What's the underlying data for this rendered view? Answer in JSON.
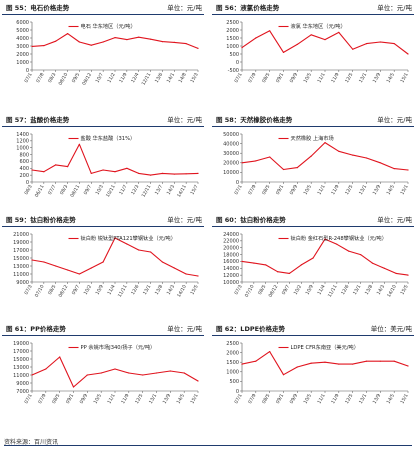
{
  "colors": {
    "line": "#e0141e",
    "axis": "#555555",
    "header_rule": "#1f3b6e"
  },
  "source": "资料来源：百川资讯",
  "panels": [
    {
      "title": "图 55：电石价格走势",
      "unit": "单位：元/吨"
    },
    {
      "title": "图 56：液氯价格走势",
      "unit": "单位：元/吨"
    },
    {
      "title": "图 57：盐酸价格走势",
      "unit": "单位：元/吨"
    },
    {
      "title": "图 58：天然橡胶价格走势",
      "unit": "单位：元/吨"
    },
    {
      "title": "图 59：钛白粉价格走势",
      "unit": "单位：元/吨"
    },
    {
      "title": "图 60：钛白粉价格走势",
      "unit": "单位：元/吨"
    },
    {
      "title": "图 61：PP价格走势",
      "unit": "单位：元/吨"
    },
    {
      "title": "图 62：LDPE价格走势",
      "unit": "单位：美元/吨"
    }
  ],
  "chart_data": [
    {
      "type": "line",
      "legend": "电石  华东地区（元/吨）",
      "ylim": [
        0,
        6000
      ],
      "yticks": [
        0,
        1000,
        2000,
        3000,
        4000,
        5000,
        6000
      ],
      "x": [
        "07/1",
        "07/8",
        "08/3",
        "08/10",
        "09/5",
        "09/12",
        "10/7",
        "11/2",
        "11/9",
        "12/4",
        "12/11",
        "13/6",
        "14/1",
        "14/8",
        "15/3"
      ],
      "series": [
        {
          "values": [
            2950,
            3050,
            3600,
            4550,
            3500,
            3100,
            3500,
            4050,
            3800,
            4100,
            3850,
            3550,
            3450,
            3300,
            2700
          ]
        }
      ]
    },
    {
      "type": "line",
      "legend": "液氯  华东地区（元/吨）",
      "ylim": [
        -500,
        2500
      ],
      "yticks": [
        -500,
        0,
        500,
        1000,
        1500,
        2000,
        2500
      ],
      "x": [
        "07/1",
        "07/9",
        "08/5",
        "09/1",
        "09/9",
        "10/5",
        "11/1",
        "11/9",
        "12/5",
        "13/1",
        "13/9",
        "14/5",
        "15/1"
      ],
      "series": [
        {
          "values": [
            900,
            1500,
            1950,
            600,
            1100,
            1700,
            1400,
            1850,
            800,
            1150,
            1250,
            1150,
            500
          ]
        }
      ]
    },
    {
      "type": "line",
      "legend": "盐酸  华东盐酸（31%）",
      "ylim": [
        0,
        1400
      ],
      "yticks": [
        0,
        200,
        400,
        600,
        800,
        1000,
        1200,
        1400
      ],
      "x": [
        "06/3",
        "06/11",
        "07/7",
        "08/3",
        "08/11",
        "09/7",
        "10/3",
        "10/11",
        "11/7",
        "12/3",
        "12/11",
        "13/7",
        "14/3",
        "14/11",
        "15/7"
      ],
      "series": [
        {
          "values": [
            350,
            300,
            500,
            450,
            1100,
            250,
            350,
            300,
            400,
            250,
            200,
            250,
            230,
            240,
            250
          ]
        }
      ]
    },
    {
      "type": "line",
      "legend": "天然橡胶  上海市场",
      "ylim": [
        0,
        50000
      ],
      "yticks": [
        0,
        10000,
        20000,
        30000,
        40000,
        50000
      ],
      "x": [
        "07/1",
        "07/9",
        "08/5",
        "09/1",
        "09/9",
        "10/5",
        "11/1",
        "11/9",
        "12/5",
        "13/1",
        "13/9",
        "14/5",
        "15/1"
      ],
      "series": [
        {
          "values": [
            20000,
            22000,
            26000,
            13000,
            15000,
            27000,
            41000,
            32000,
            28000,
            25000,
            20000,
            14000,
            12500
          ]
        }
      ]
    },
    {
      "type": "line",
      "legend": "钛白粉  锐钛型PTA121攀钢钛业（元/吨）",
      "ylim": [
        9000,
        21000
      ],
      "yticks": [
        9000,
        11000,
        13000,
        15000,
        17000,
        19000,
        21000
      ],
      "x": [
        "07/3",
        "07/10",
        "08/5",
        "08/12",
        "09/7",
        "10/2",
        "10/9",
        "11/4",
        "11/11",
        "12/6",
        "13/1",
        "13/8",
        "14/3",
        "14/10",
        "15/5"
      ],
      "series": [
        {
          "values": [
            14500,
            14000,
            13000,
            12000,
            11000,
            12500,
            14000,
            20000,
            18500,
            17000,
            16500,
            14000,
            12500,
            11000,
            10500
          ]
        }
      ]
    },
    {
      "type": "line",
      "legend": "钛白粉  金红石型R-248攀钢钛业（元/吨）",
      "ylim": [
        10000,
        24000
      ],
      "yticks": [
        10000,
        12000,
        14000,
        16000,
        18000,
        20000,
        22000,
        24000
      ],
      "x": [
        "07/3",
        "07/10",
        "08/5",
        "08/12",
        "09/7",
        "10/2",
        "10/9",
        "11/4",
        "11/11",
        "12/6",
        "13/1",
        "13/8",
        "14/3",
        "14/10",
        "15/5"
      ],
      "series": [
        {
          "values": [
            16000,
            15500,
            15000,
            13000,
            12500,
            15000,
            17000,
            22500,
            21000,
            19000,
            18000,
            15500,
            14000,
            12500,
            12000
          ]
        }
      ]
    },
    {
      "type": "line",
      "legend": "PP  余姚市场J340/扬子（元/吨）",
      "ylim": [
        7000,
        19000
      ],
      "yticks": [
        7000,
        9000,
        11000,
        13000,
        15000,
        17000,
        19000
      ],
      "x": [
        "07/1",
        "07/9",
        "08/5",
        "09/1",
        "09/9",
        "10/5",
        "11/1",
        "11/9",
        "12/5",
        "13/1",
        "13/9",
        "14/5",
        "15/1"
      ],
      "series": [
        {
          "values": [
            11000,
            12500,
            15500,
            8000,
            11000,
            11500,
            12500,
            11500,
            11000,
            11500,
            12000,
            11500,
            9500
          ]
        }
      ]
    },
    {
      "type": "line",
      "legend": "LDPE  CFR东南亚（美元/吨）",
      "ylim": [
        0,
        2500
      ],
      "yticks": [
        0,
        500,
        1000,
        1500,
        2000,
        2500
      ],
      "x": [
        "07/1",
        "07/9",
        "08/5",
        "09/1",
        "09/9",
        "10/5",
        "11/1",
        "11/9",
        "12/5",
        "13/1",
        "13/9",
        "14/5",
        "15/1"
      ],
      "series": [
        {
          "values": [
            1400,
            1550,
            2050,
            850,
            1250,
            1450,
            1500,
            1400,
            1400,
            1550,
            1550,
            1550,
            1300
          ]
        }
      ]
    }
  ]
}
